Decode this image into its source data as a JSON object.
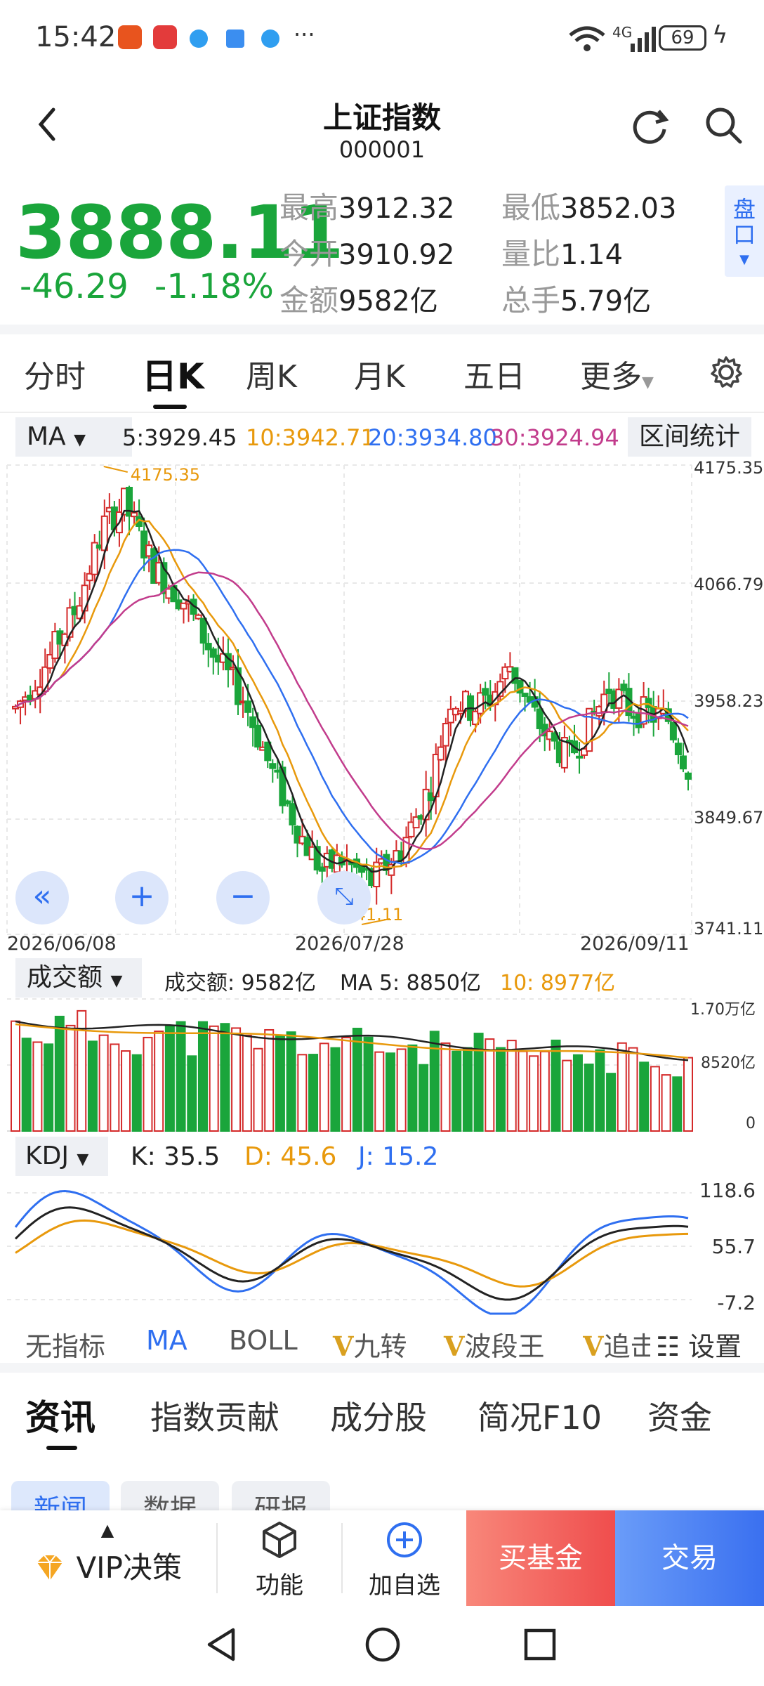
{
  "status": {
    "time": "15:42",
    "battery": "69",
    "network": "4G"
  },
  "header": {
    "title": "上证指数",
    "code": "000001"
  },
  "quote": {
    "price": "3888.11",
    "change": "-46.29",
    "change_pct": "-1.18%",
    "stats": [
      {
        "label": "最高",
        "value": "3912.32"
      },
      {
        "label": "最低",
        "value": "3852.03"
      },
      {
        "label": "今开",
        "value": "3910.92"
      },
      {
        "label": "量比",
        "value": "1.14"
      },
      {
        "label": "金额",
        "value": "9582亿"
      },
      {
        "label": "总手",
        "value": "5.79亿"
      }
    ],
    "pankou_label": "盘口"
  },
  "period_tabs": [
    "分时",
    "日K",
    "周K",
    "月K",
    "五日",
    "更多"
  ],
  "active_period": "日K",
  "ma_legend": {
    "selector": "MA",
    "ma5": "5:3929.45",
    "ma10": "10:3942.71",
    "ma20": "20:3934.80",
    "ma30": "30:3924.94",
    "range_stats": "区间统计"
  },
  "kline": {
    "y_labels": [
      "4175.35",
      "4066.79",
      "3958.23",
      "3849.67",
      "3741.11"
    ],
    "high_mark": "4175.35",
    "low_mark": "3741.11",
    "dates": [
      "2026/06/08",
      "2026/07/28",
      "2026/09/11"
    ]
  },
  "volume": {
    "selector": "成交额",
    "amount": "成交额: 9582亿",
    "ma5": "MA 5: 8850亿",
    "ma10": "10: 8977亿",
    "y_labels": [
      "1.70万亿",
      "8520亿",
      "0"
    ]
  },
  "kdj": {
    "selector": "KDJ",
    "k": "K: 35.5",
    "d": "D: 45.6",
    "j": "J: 15.2",
    "y_labels": [
      "118.6",
      "55.7",
      "-7.2"
    ]
  },
  "indicator_tabs": {
    "none": "无指标",
    "ma": "MA",
    "boll": "BOLL",
    "jiuzhuan": "九转",
    "boduanwang": "波段王",
    "zhui": "追击",
    "settings": "设置"
  },
  "news_tabs": [
    "资讯",
    "指数贡献",
    "成分股",
    "简况F10",
    "资金"
  ],
  "sub_tabs": [
    "新闻",
    "数据",
    "研报"
  ],
  "bottom_bar": {
    "vip": "VIP决策",
    "function": "功能",
    "add_watch": "加自选",
    "buy_fund": "买基金",
    "trade": "交易"
  },
  "colors": {
    "up": "#d42a2a",
    "down": "#1aa53b",
    "ma5": "#222222",
    "ma10": "#e8990c",
    "ma20": "#2f6ff0",
    "ma30": "#c23c8c",
    "accent": "#2f6ff0"
  }
}
